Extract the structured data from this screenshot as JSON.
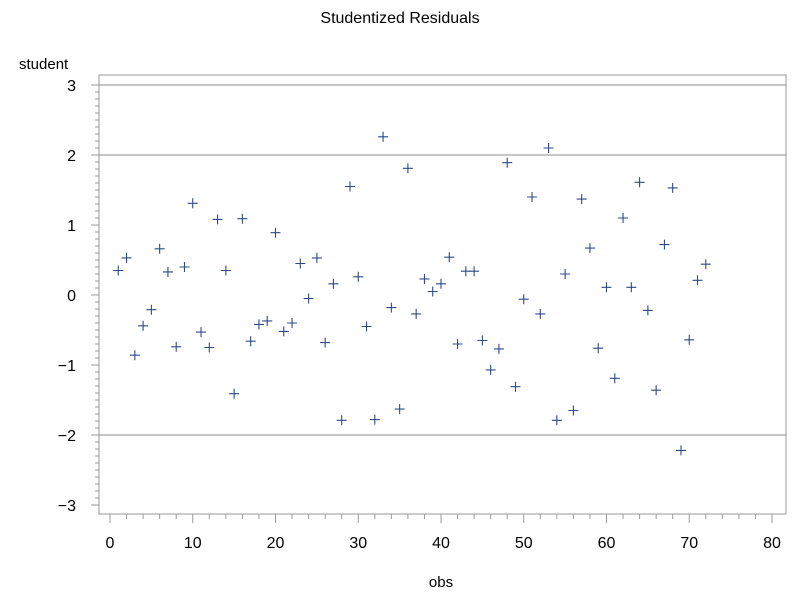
{
  "chart_data": {
    "type": "scatter",
    "title": "Studentized Residuals",
    "xlabel": "obs",
    "ylabel": "student",
    "xlim": [
      0,
      80
    ],
    "ylim": [
      -3,
      3
    ],
    "x_ticks": [
      "0",
      "10",
      "20",
      "30",
      "40",
      "50",
      "60",
      "70",
      "80"
    ],
    "y_ticks": [
      "3",
      "2",
      "1",
      "0",
      "−1",
      "−2",
      "−3"
    ],
    "reference_lines_y": [
      -2,
      2,
      3
    ],
    "grid": false,
    "legend": "none",
    "marker": "plus",
    "marker_color": "#2f4a87",
    "x": [
      1,
      2,
      3,
      4,
      5,
      6,
      7,
      8,
      9,
      10,
      11,
      12,
      13,
      14,
      15,
      16,
      17,
      18,
      19,
      20,
      21,
      22,
      23,
      24,
      25,
      26,
      27,
      28,
      29,
      30,
      31,
      32,
      33,
      34,
      35,
      36,
      37,
      38,
      39,
      40,
      41,
      42,
      43,
      44,
      45,
      46,
      47,
      48,
      49,
      50,
      51,
      52,
      53,
      54,
      55,
      56,
      57,
      58,
      59,
      60,
      61,
      62,
      63,
      64,
      65,
      66,
      67,
      68,
      69,
      70,
      71,
      72
    ],
    "y": [
      0.35,
      0.53,
      -0.86,
      -0.44,
      -0.21,
      0.66,
      0.33,
      -0.74,
      0.4,
      1.31,
      -0.53,
      -0.75,
      1.08,
      0.35,
      -1.41,
      1.09,
      -0.66,
      -0.42,
      -0.37,
      0.89,
      -0.52,
      -0.4,
      0.45,
      -0.05,
      0.53,
      -0.68,
      0.16,
      -1.79,
      1.55,
      0.26,
      -0.45,
      -1.78,
      2.26,
      -0.18,
      -1.63,
      1.81,
      -0.27,
      0.23,
      0.05,
      0.16,
      0.54,
      -0.7,
      0.34,
      0.34,
      -0.65,
      -1.07,
      -0.77,
      1.89,
      -1.31,
      -0.06,
      1.4,
      -0.27,
      2.1,
      -1.79,
      0.3,
      -1.65,
      1.37,
      0.67,
      -0.76,
      0.11,
      -1.19,
      1.1,
      0.11,
      1.61,
      -0.22,
      -1.36,
      0.72,
      1.53,
      -2.22,
      -0.64,
      0.21,
      0.44
    ]
  }
}
